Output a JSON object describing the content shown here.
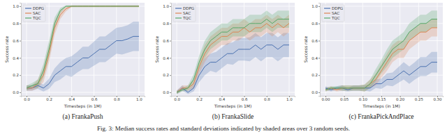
{
  "chart_data": [
    {
      "type": "line",
      "title": "(a) FrankaPush",
      "xlabel": "Timesteps (in 1M)",
      "ylabel": "Success rate",
      "x": [
        0,
        0.05,
        0.1,
        0.15,
        0.2,
        0.25,
        0.3,
        0.35,
        0.4,
        0.45,
        0.5,
        0.55,
        0.6,
        0.65,
        0.7,
        0.75,
        0.8,
        0.85,
        0.9,
        0.95,
        1.0
      ],
      "xlim": [
        -0.05,
        1.05
      ],
      "xticks": [
        {
          "value": 0,
          "label": "0.0"
        },
        {
          "value": 0.2,
          "label": "0.2"
        },
        {
          "value": 0.4,
          "label": "0.4"
        },
        {
          "value": 0.6,
          "label": "0.6"
        },
        {
          "value": 0.8,
          "label": "0.8"
        },
        {
          "value": 1,
          "label": "1.0"
        }
      ],
      "ylim": [
        -0.04,
        1.04
      ],
      "yticks": [
        {
          "value": 0,
          "label": "0.0"
        },
        {
          "value": 0.2,
          "label": "0.2"
        },
        {
          "value": 0.4,
          "label": "0.4"
        },
        {
          "value": 0.6,
          "label": "0.6"
        },
        {
          "value": 0.8,
          "label": "0.8"
        },
        {
          "value": 1,
          "label": "1.0"
        }
      ],
      "grid": true,
      "legend": "upper left",
      "series": [
        {
          "name": "DDPG",
          "color": "#4c72b0",
          "values": [
            0.05,
            0.05,
            0.08,
            0.05,
            0.1,
            0.2,
            0.25,
            0.3,
            0.3,
            0.35,
            0.4,
            0.4,
            0.45,
            0.5,
            0.5,
            0.55,
            0.6,
            0.6,
            0.62,
            0.65,
            0.65
          ],
          "std": [
            0.03,
            0.03,
            0.04,
            0.04,
            0.06,
            0.08,
            0.1,
            0.1,
            0.12,
            0.12,
            0.13,
            0.13,
            0.14,
            0.15,
            0.15,
            0.15,
            0.15,
            0.16,
            0.16,
            0.17,
            0.17
          ]
        },
        {
          "name": "SAC",
          "color": "#dd8452",
          "values": [
            0.05,
            0.05,
            0.1,
            0.2,
            0.45,
            0.75,
            0.9,
            0.97,
            1.0,
            1.0,
            1.0,
            1.0,
            1.0,
            1.0,
            1.0,
            1.0,
            1.0,
            1.0,
            1.0,
            1.0,
            1.0
          ],
          "std": [
            0.03,
            0.03,
            0.05,
            0.08,
            0.1,
            0.08,
            0.05,
            0.03,
            0.01,
            0.01,
            0.01,
            0.01,
            0.01,
            0.01,
            0.01,
            0.01,
            0.01,
            0.01,
            0.01,
            0.01,
            0.01
          ]
        },
        {
          "name": "TQC",
          "color": "#55a868",
          "values": [
            0.05,
            0.08,
            0.1,
            0.25,
            0.5,
            0.8,
            0.95,
            1.0,
            1.0,
            1.0,
            1.0,
            1.0,
            1.0,
            1.0,
            1.0,
            1.0,
            1.0,
            1.0,
            1.0,
            1.0,
            1.0
          ],
          "std": [
            0.03,
            0.03,
            0.05,
            0.08,
            0.1,
            0.07,
            0.03,
            0.01,
            0.01,
            0.01,
            0.01,
            0.01,
            0.01,
            0.01,
            0.01,
            0.01,
            0.01,
            0.01,
            0.01,
            0.01,
            0.01
          ]
        }
      ]
    },
    {
      "type": "line",
      "title": "(b) FrankaSlide",
      "xlabel": "Timesteps (in 1M)",
      "ylabel": "Success rate",
      "x": [
        0,
        0.05,
        0.1,
        0.15,
        0.2,
        0.25,
        0.3,
        0.35,
        0.4,
        0.45,
        0.5,
        0.55,
        0.6,
        0.65,
        0.7,
        0.75,
        0.8,
        0.85,
        0.9,
        0.95,
        1.0
      ],
      "xlim": [
        -0.05,
        1.05
      ],
      "xticks": [
        {
          "value": 0,
          "label": "0.0"
        },
        {
          "value": 0.2,
          "label": "0.2"
        },
        {
          "value": 0.4,
          "label": "0.4"
        },
        {
          "value": 0.6,
          "label": "0.6"
        },
        {
          "value": 0.8,
          "label": "0.8"
        },
        {
          "value": 1,
          "label": "1.0"
        }
      ],
      "ylim": [
        -0.04,
        1.04
      ],
      "yticks": [
        {
          "value": 0,
          "label": "0.0"
        },
        {
          "value": 0.2,
          "label": "0.2"
        },
        {
          "value": 0.4,
          "label": "0.4"
        },
        {
          "value": 0.6,
          "label": "0.6"
        },
        {
          "value": 0.8,
          "label": "0.8"
        },
        {
          "value": 1,
          "label": "1.0"
        }
      ],
      "grid": true,
      "legend": "upper left",
      "series": [
        {
          "name": "DDPG",
          "color": "#4c72b0",
          "values": [
            0,
            0.05,
            0,
            0.05,
            0.2,
            0.3,
            0.35,
            0.35,
            0.4,
            0.45,
            0.45,
            0.5,
            0.5,
            0.5,
            0.55,
            0.5,
            0.55,
            0.55,
            0.5,
            0.55,
            0.55
          ],
          "std": [
            0.02,
            0.03,
            0.02,
            0.04,
            0.08,
            0.1,
            0.1,
            0.12,
            0.12,
            0.12,
            0.13,
            0.13,
            0.13,
            0.14,
            0.14,
            0.14,
            0.14,
            0.14,
            0.14,
            0.14,
            0.14
          ]
        },
        {
          "name": "SAC",
          "color": "#dd8452",
          "values": [
            0,
            0.05,
            0.05,
            0.1,
            0.3,
            0.45,
            0.55,
            0.6,
            0.65,
            0.65,
            0.7,
            0.7,
            0.75,
            0.7,
            0.75,
            0.75,
            0.8,
            0.75,
            0.8,
            0.75,
            0.8
          ],
          "std": [
            0.02,
            0.03,
            0.03,
            0.05,
            0.08,
            0.1,
            0.1,
            0.1,
            0.1,
            0.1,
            0.1,
            0.1,
            0.1,
            0.1,
            0.1,
            0.1,
            0.1,
            0.1,
            0.1,
            0.1,
            0.1
          ]
        },
        {
          "name": "TQC",
          "color": "#55a868",
          "values": [
            0,
            0.03,
            0.05,
            0.15,
            0.35,
            0.5,
            0.6,
            0.65,
            0.7,
            0.7,
            0.75,
            0.75,
            0.75,
            0.8,
            0.8,
            0.8,
            0.85,
            0.8,
            0.85,
            0.85,
            0.85
          ],
          "std": [
            0.02,
            0.02,
            0.03,
            0.06,
            0.08,
            0.1,
            0.1,
            0.1,
            0.1,
            0.1,
            0.1,
            0.1,
            0.1,
            0.1,
            0.1,
            0.1,
            0.1,
            0.1,
            0.1,
            0.1,
            0.1
          ]
        }
      ]
    },
    {
      "type": "line",
      "title": "(c) FrankaPickAndPlace",
      "xlabel": "Timesteps (in 1M)",
      "ylabel": "Success rate",
      "x": [
        0,
        0.015,
        0.03,
        0.045,
        0.06,
        0.075,
        0.09,
        0.105,
        0.12,
        0.135,
        0.15,
        0.165,
        0.18,
        0.195,
        0.21,
        0.225,
        0.24,
        0.255,
        0.27,
        0.285,
        0.3
      ],
      "xlim": [
        -0.015,
        0.315
      ],
      "xticks": [
        {
          "value": 0,
          "label": "0.00"
        },
        {
          "value": 0.05,
          "label": "0.05"
        },
        {
          "value": 0.1,
          "label": "0.10"
        },
        {
          "value": 0.15,
          "label": "0.15"
        },
        {
          "value": 0.2,
          "label": "0.20"
        },
        {
          "value": 0.25,
          "label": "0.25"
        },
        {
          "value": 0.3,
          "label": "0.30"
        }
      ],
      "ylim": [
        -0.04,
        1.04
      ],
      "yticks": [
        {
          "value": 0,
          "label": "0.0"
        },
        {
          "value": 0.2,
          "label": "0.2"
        },
        {
          "value": 0.4,
          "label": "0.4"
        },
        {
          "value": 0.6,
          "label": "0.6"
        },
        {
          "value": 0.8,
          "label": "0.8"
        },
        {
          "value": 1,
          "label": "1.0"
        }
      ],
      "grid": true,
      "legend": "upper left",
      "series": [
        {
          "name": "DDPG",
          "color": "#4c72b0",
          "values": [
            0.05,
            0.03,
            0.05,
            0.05,
            0.03,
            0.05,
            0.05,
            0.05,
            0.05,
            0.1,
            0.1,
            0.15,
            0.15,
            0.2,
            0.25,
            0.2,
            0.25,
            0.3,
            0.3,
            0.35,
            0.35
          ],
          "std": [
            0.02,
            0.02,
            0.02,
            0.03,
            0.02,
            0.03,
            0.03,
            0.03,
            0.04,
            0.05,
            0.06,
            0.07,
            0.08,
            0.09,
            0.1,
            0.1,
            0.1,
            0.11,
            0.11,
            0.12,
            0.12
          ]
        },
        {
          "name": "SAC",
          "color": "#dd8452",
          "values": [
            0.03,
            0.05,
            0.03,
            0.05,
            0.05,
            0.05,
            0.05,
            0.05,
            0.1,
            0.15,
            0.25,
            0.35,
            0.45,
            0.5,
            0.5,
            0.6,
            0.65,
            0.7,
            0.7,
            0.75,
            0.75
          ],
          "std": [
            0.02,
            0.02,
            0.02,
            0.03,
            0.03,
            0.03,
            0.03,
            0.04,
            0.05,
            0.07,
            0.08,
            0.1,
            0.1,
            0.1,
            0.1,
            0.1,
            0.1,
            0.1,
            0.1,
            0.1,
            0.1
          ]
        },
        {
          "name": "TQC",
          "color": "#55a868",
          "values": [
            0.03,
            0.05,
            0.05,
            0.05,
            0.05,
            0.05,
            0.05,
            0.05,
            0.1,
            0.2,
            0.3,
            0.4,
            0.5,
            0.55,
            0.6,
            0.7,
            0.75,
            0.8,
            0.8,
            0.85,
            0.85
          ],
          "std": [
            0.02,
            0.02,
            0.02,
            0.03,
            0.03,
            0.03,
            0.03,
            0.04,
            0.05,
            0.07,
            0.08,
            0.1,
            0.1,
            0.1,
            0.1,
            0.1,
            0.1,
            0.1,
            0.1,
            0.1,
            0.1
          ]
        }
      ]
    }
  ],
  "caption": "Fig. 3: Median success rates and standard deviations indicated by shaded areas over 3 random seeds."
}
